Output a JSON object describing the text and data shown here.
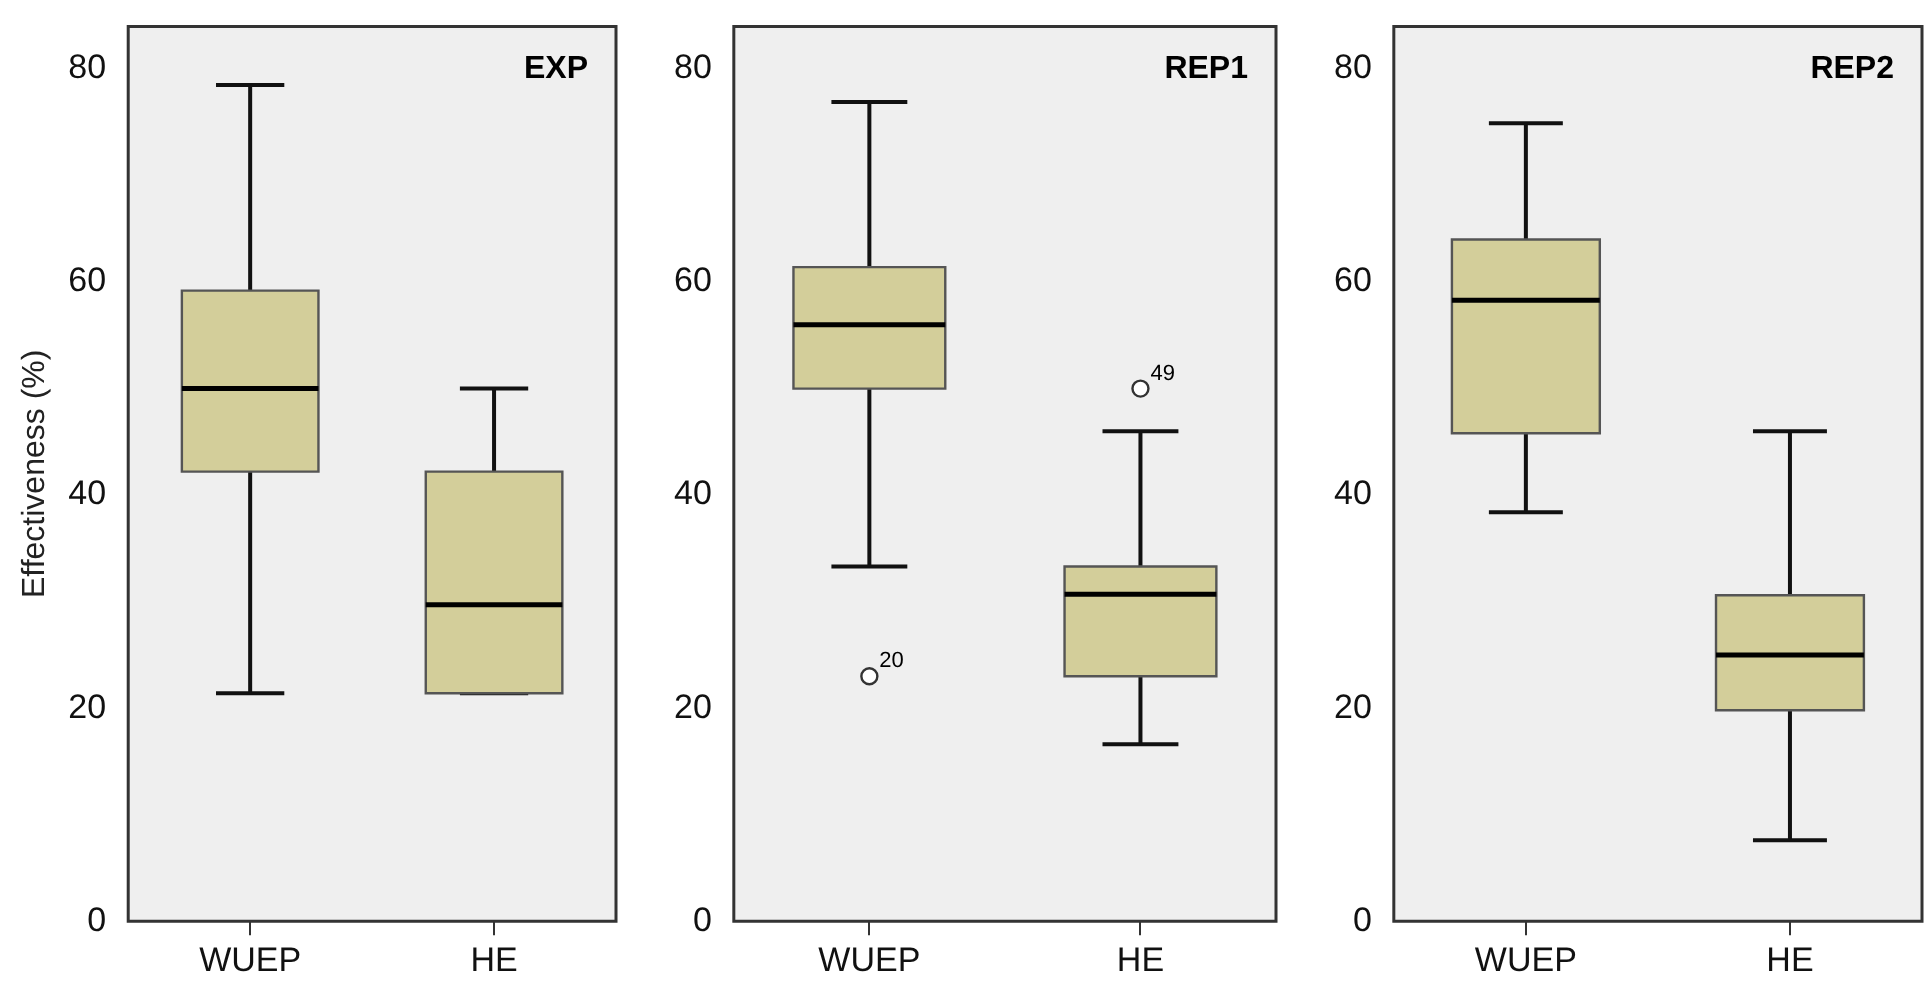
{
  "chart_data": [
    {
      "type": "box",
      "title": "EXP",
      "ylabel": "Effectiveness (%)",
      "categories": [
        "WUEP",
        "HE"
      ],
      "color": "#d3ce9a",
      "ylim": [
        0,
        84
      ],
      "yticks": [
        0,
        20,
        40,
        60,
        80
      ],
      "boxes": [
        {
          "low": 21.4,
          "q1": 42.2,
          "median": 50.0,
          "q3": 59.2,
          "high": 78.5
        },
        {
          "low": 21.4,
          "q1": 21.4,
          "median": 29.7,
          "q3": 42.2,
          "high": 50.0
        }
      ]
    },
    {
      "type": "box",
      "title": "REP1",
      "categories": [
        "WUEP",
        "HE"
      ],
      "color": "#d3ce9a",
      "ylim": [
        0,
        84
      ],
      "yticks": [
        0,
        20,
        40,
        60,
        80
      ],
      "boxes": [
        {
          "low": 33.3,
          "q1": 50.0,
          "median": 56.0,
          "q3": 61.4,
          "high": 76.9,
          "outliers": [
            23.0
          ]
        },
        {
          "low": 16.6,
          "q1": 23.0,
          "median": 30.7,
          "q3": 33.3,
          "high": 46.0,
          "outliers": [
            50.0
          ]
        }
      ],
      "annotations": [
        "20",
        "49"
      ]
    },
    {
      "type": "box",
      "title": "REP2",
      "categories": [
        "WUEP",
        "HE"
      ],
      "color": "#d3ce9a",
      "ylim": [
        0,
        84
      ],
      "yticks": [
        0,
        20,
        40,
        60,
        80
      ],
      "boxes": [
        {
          "low": 38.4,
          "q1": 45.8,
          "median": 58.3,
          "q3": 64.0,
          "high": 74.9
        },
        {
          "low": 7.6,
          "q1": 19.8,
          "median": 25.0,
          "q3": 30.6,
          "high": 46.0
        }
      ]
    }
  ]
}
